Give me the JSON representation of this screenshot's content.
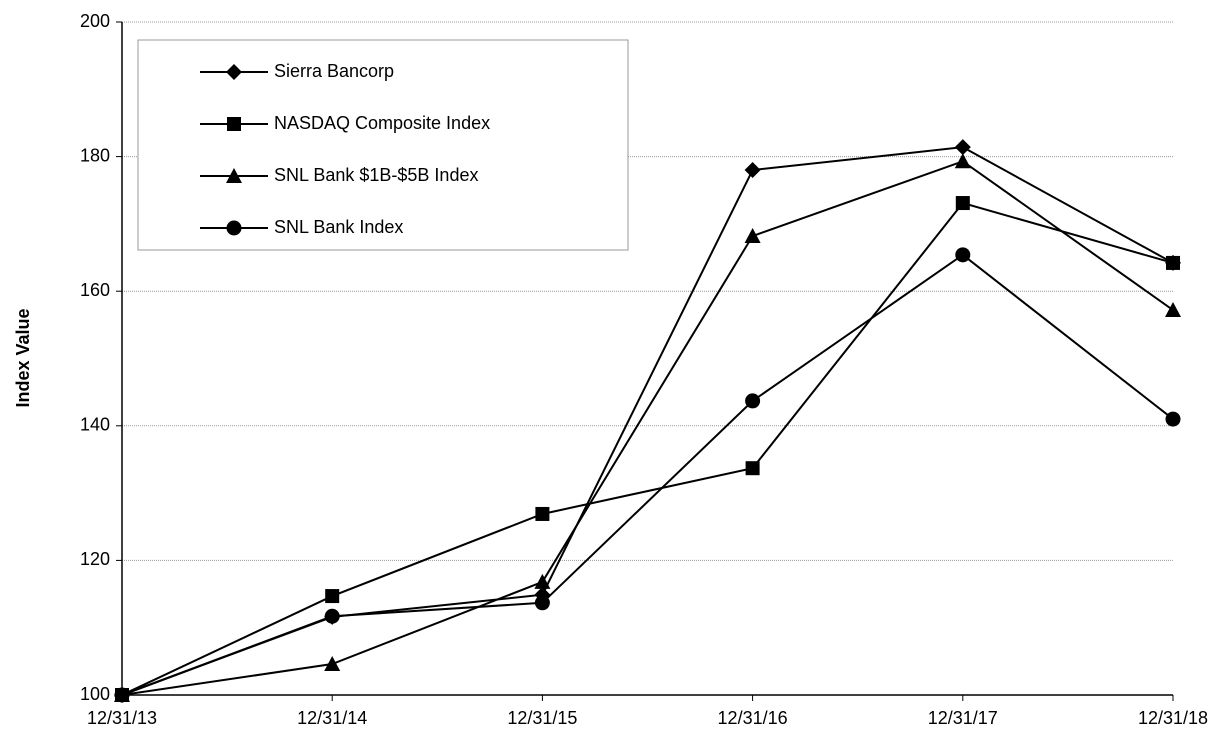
{
  "chart_data": {
    "type": "line",
    "y_label": "Index Value",
    "categories": [
      "12/31/13",
      "12/31/14",
      "12/31/15",
      "12/31/16",
      "12/31/17",
      "12/31/18"
    ],
    "series": [
      {
        "name": "Sierra Bancorp",
        "color": "#000000",
        "marker": "diamond",
        "values": [
          100,
          111.6,
          114.9,
          178.0,
          181.4,
          164.2
        ]
      },
      {
        "name": "NASDAQ Composite Index",
        "color": "#000000",
        "marker": "square",
        "values": [
          100,
          114.7,
          126.9,
          133.7,
          173.1,
          164.2
        ]
      },
      {
        "name": "SNL Bank $1B-$5B Index",
        "color": "#000000",
        "marker": "triangle",
        "values": [
          100,
          104.6,
          116.8,
          168.2,
          179.3,
          157.2
        ]
      },
      {
        "name": "SNL Bank Index",
        "color": "#000000",
        "marker": "circle",
        "values": [
          100,
          111.7,
          113.7,
          143.7,
          165.4,
          141.0
        ]
      }
    ],
    "ylim": [
      100,
      200
    ],
    "yticks": [
      100,
      120,
      140,
      160,
      180,
      200
    ],
    "grid": true,
    "legend": "upper left"
  }
}
